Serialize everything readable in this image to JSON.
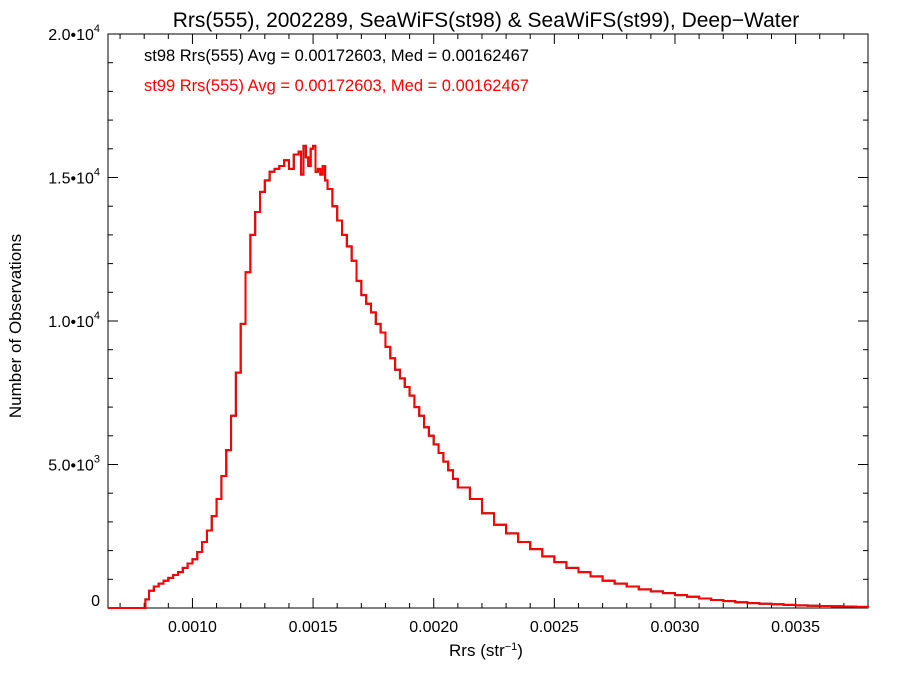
{
  "chart_data": {
    "type": "line",
    "step": true,
    "title": "Rrs(555), 2002289, SeaWiFS(st98) & SeaWiFS(st99), Deep−Water",
    "xlabel": "Rrs (str",
    "xlabel_sup": "−1",
    "xlabel_end": ")",
    "ylabel": "Number of Observations",
    "xlim": [
      0.00065,
      0.0038
    ],
    "ylim": [
      0,
      20000
    ],
    "x_ticks": [
      {
        "value": 0.001,
        "label": "0.0010"
      },
      {
        "value": 0.0015,
        "label": "0.0015"
      },
      {
        "value": 0.002,
        "label": "0.0020"
      },
      {
        "value": 0.0025,
        "label": "0.0025"
      },
      {
        "value": 0.003,
        "label": "0.0030"
      },
      {
        "value": 0.0035,
        "label": "0.0035"
      }
    ],
    "y_ticks": [
      {
        "value": 0,
        "mant": "0",
        "exp": ""
      },
      {
        "value": 5000,
        "mant": "5.0•10",
        "exp": "3"
      },
      {
        "value": 10000,
        "mant": "1.0•10",
        "exp": "4"
      },
      {
        "value": 15000,
        "mant": "1.5•10",
        "exp": "4"
      },
      {
        "value": 20000,
        "mant": "2.0•10",
        "exp": "4"
      }
    ],
    "annotations": [
      {
        "text": "st98 Rrs(555) Avg = 0.00172603, Med = 0.00162467",
        "color": "#000000"
      },
      {
        "text": "st99 Rrs(555) Avg = 0.00172603, Med = 0.00162467",
        "color": "#ff0000"
      }
    ],
    "series": [
      {
        "name": "st98",
        "color": "#000000",
        "x": [
          0.00065,
          0.00075,
          0.000795,
          0.000805,
          0.00082,
          0.00084,
          0.00086,
          0.00088,
          0.0009,
          0.00092,
          0.00094,
          0.00096,
          0.00098,
          0.001,
          0.00102,
          0.00104,
          0.00106,
          0.00108,
          0.0011,
          0.00112,
          0.00114,
          0.00116,
          0.00118,
          0.0012,
          0.00122,
          0.00124,
          0.00126,
          0.00128,
          0.0013,
          0.00132,
          0.00134,
          0.00136,
          0.00138,
          0.0014,
          0.00142,
          0.00144,
          0.00145,
          0.00146,
          0.00147,
          0.00148,
          0.00149,
          0.0015,
          0.00151,
          0.00152,
          0.00153,
          0.00154,
          0.00155,
          0.00156,
          0.00158,
          0.0016,
          0.00162,
          0.00164,
          0.00166,
          0.00168,
          0.0017,
          0.00172,
          0.00174,
          0.00176,
          0.00178,
          0.0018,
          0.00182,
          0.00184,
          0.00186,
          0.00188,
          0.0019,
          0.00192,
          0.00194,
          0.00196,
          0.00198,
          0.002,
          0.00202,
          0.00204,
          0.00206,
          0.00208,
          0.0021,
          0.00215,
          0.0022,
          0.00225,
          0.0023,
          0.00235,
          0.0024,
          0.00245,
          0.0025,
          0.00255,
          0.0026,
          0.00265,
          0.0027,
          0.00275,
          0.0028,
          0.00285,
          0.0029,
          0.00295,
          0.003,
          0.00305,
          0.0031,
          0.00315,
          0.0032,
          0.00325,
          0.0033,
          0.00335,
          0.0034,
          0.00345,
          0.0035,
          0.00355,
          0.0036,
          0.00365,
          0.0037,
          0.00375,
          0.0038
        ],
        "values": [
          0,
          0,
          0,
          300,
          600,
          750,
          850,
          950,
          1050,
          1150,
          1250,
          1400,
          1550,
          1700,
          1950,
          2300,
          2700,
          3200,
          3800,
          4600,
          5500,
          6700,
          8200,
          9900,
          11700,
          13000,
          13800,
          14500,
          14900,
          15200,
          15300,
          15400,
          15600,
          15300,
          15800,
          15900,
          15100,
          16100,
          15700,
          15400,
          16000,
          16100,
          15200,
          15300,
          15100,
          15400,
          14900,
          14600,
          14000,
          13500,
          13000,
          12600,
          12100,
          11400,
          10900,
          10600,
          10300,
          9900,
          9600,
          9100,
          8700,
          8300,
          8000,
          7700,
          7400,
          7000,
          6700,
          6300,
          6000,
          5700,
          5400,
          5100,
          4800,
          4500,
          4200,
          3800,
          3300,
          2900,
          2600,
          2300,
          2050,
          1800,
          1600,
          1400,
          1250,
          1100,
          950,
          850,
          750,
          650,
          580,
          520,
          450,
          390,
          330,
          280,
          240,
          200,
          170,
          150,
          130,
          110,
          90,
          80,
          70,
          60,
          50,
          40,
          30
        ]
      },
      {
        "name": "st99",
        "color": "#ff0000",
        "x": [
          0.00065,
          0.00075,
          0.000795,
          0.000805,
          0.00082,
          0.00084,
          0.00086,
          0.00088,
          0.0009,
          0.00092,
          0.00094,
          0.00096,
          0.00098,
          0.001,
          0.00102,
          0.00104,
          0.00106,
          0.00108,
          0.0011,
          0.00112,
          0.00114,
          0.00116,
          0.00118,
          0.0012,
          0.00122,
          0.00124,
          0.00126,
          0.00128,
          0.0013,
          0.00132,
          0.00134,
          0.00136,
          0.00138,
          0.0014,
          0.00142,
          0.00144,
          0.00145,
          0.00146,
          0.00147,
          0.00148,
          0.00149,
          0.0015,
          0.00151,
          0.00152,
          0.00153,
          0.00154,
          0.00155,
          0.00156,
          0.00158,
          0.0016,
          0.00162,
          0.00164,
          0.00166,
          0.00168,
          0.0017,
          0.00172,
          0.00174,
          0.00176,
          0.00178,
          0.0018,
          0.00182,
          0.00184,
          0.00186,
          0.00188,
          0.0019,
          0.00192,
          0.00194,
          0.00196,
          0.00198,
          0.002,
          0.00202,
          0.00204,
          0.00206,
          0.00208,
          0.0021,
          0.00215,
          0.0022,
          0.00225,
          0.0023,
          0.00235,
          0.0024,
          0.00245,
          0.0025,
          0.00255,
          0.0026,
          0.00265,
          0.0027,
          0.00275,
          0.0028,
          0.00285,
          0.0029,
          0.00295,
          0.003,
          0.00305,
          0.0031,
          0.00315,
          0.0032,
          0.00325,
          0.0033,
          0.00335,
          0.0034,
          0.00345,
          0.0035,
          0.00355,
          0.0036,
          0.00365,
          0.0037,
          0.00375,
          0.0038
        ],
        "values": [
          0,
          0,
          0,
          300,
          600,
          750,
          850,
          950,
          1050,
          1150,
          1250,
          1400,
          1550,
          1700,
          1950,
          2300,
          2700,
          3200,
          3800,
          4600,
          5500,
          6700,
          8200,
          9900,
          11700,
          13000,
          13800,
          14500,
          14900,
          15200,
          15300,
          15400,
          15600,
          15300,
          15800,
          15900,
          15100,
          16100,
          15700,
          15400,
          16000,
          16100,
          15200,
          15300,
          15100,
          15400,
          14900,
          14600,
          14000,
          13500,
          13000,
          12600,
          12100,
          11400,
          10900,
          10600,
          10300,
          9900,
          9600,
          9100,
          8700,
          8300,
          8000,
          7700,
          7400,
          7000,
          6700,
          6300,
          6000,
          5700,
          5400,
          5100,
          4800,
          4500,
          4200,
          3800,
          3300,
          2900,
          2600,
          2300,
          2050,
          1800,
          1600,
          1400,
          1250,
          1100,
          950,
          850,
          750,
          650,
          580,
          520,
          450,
          390,
          330,
          280,
          240,
          200,
          170,
          150,
          130,
          110,
          90,
          80,
          70,
          60,
          50,
          40,
          30
        ]
      }
    ]
  }
}
